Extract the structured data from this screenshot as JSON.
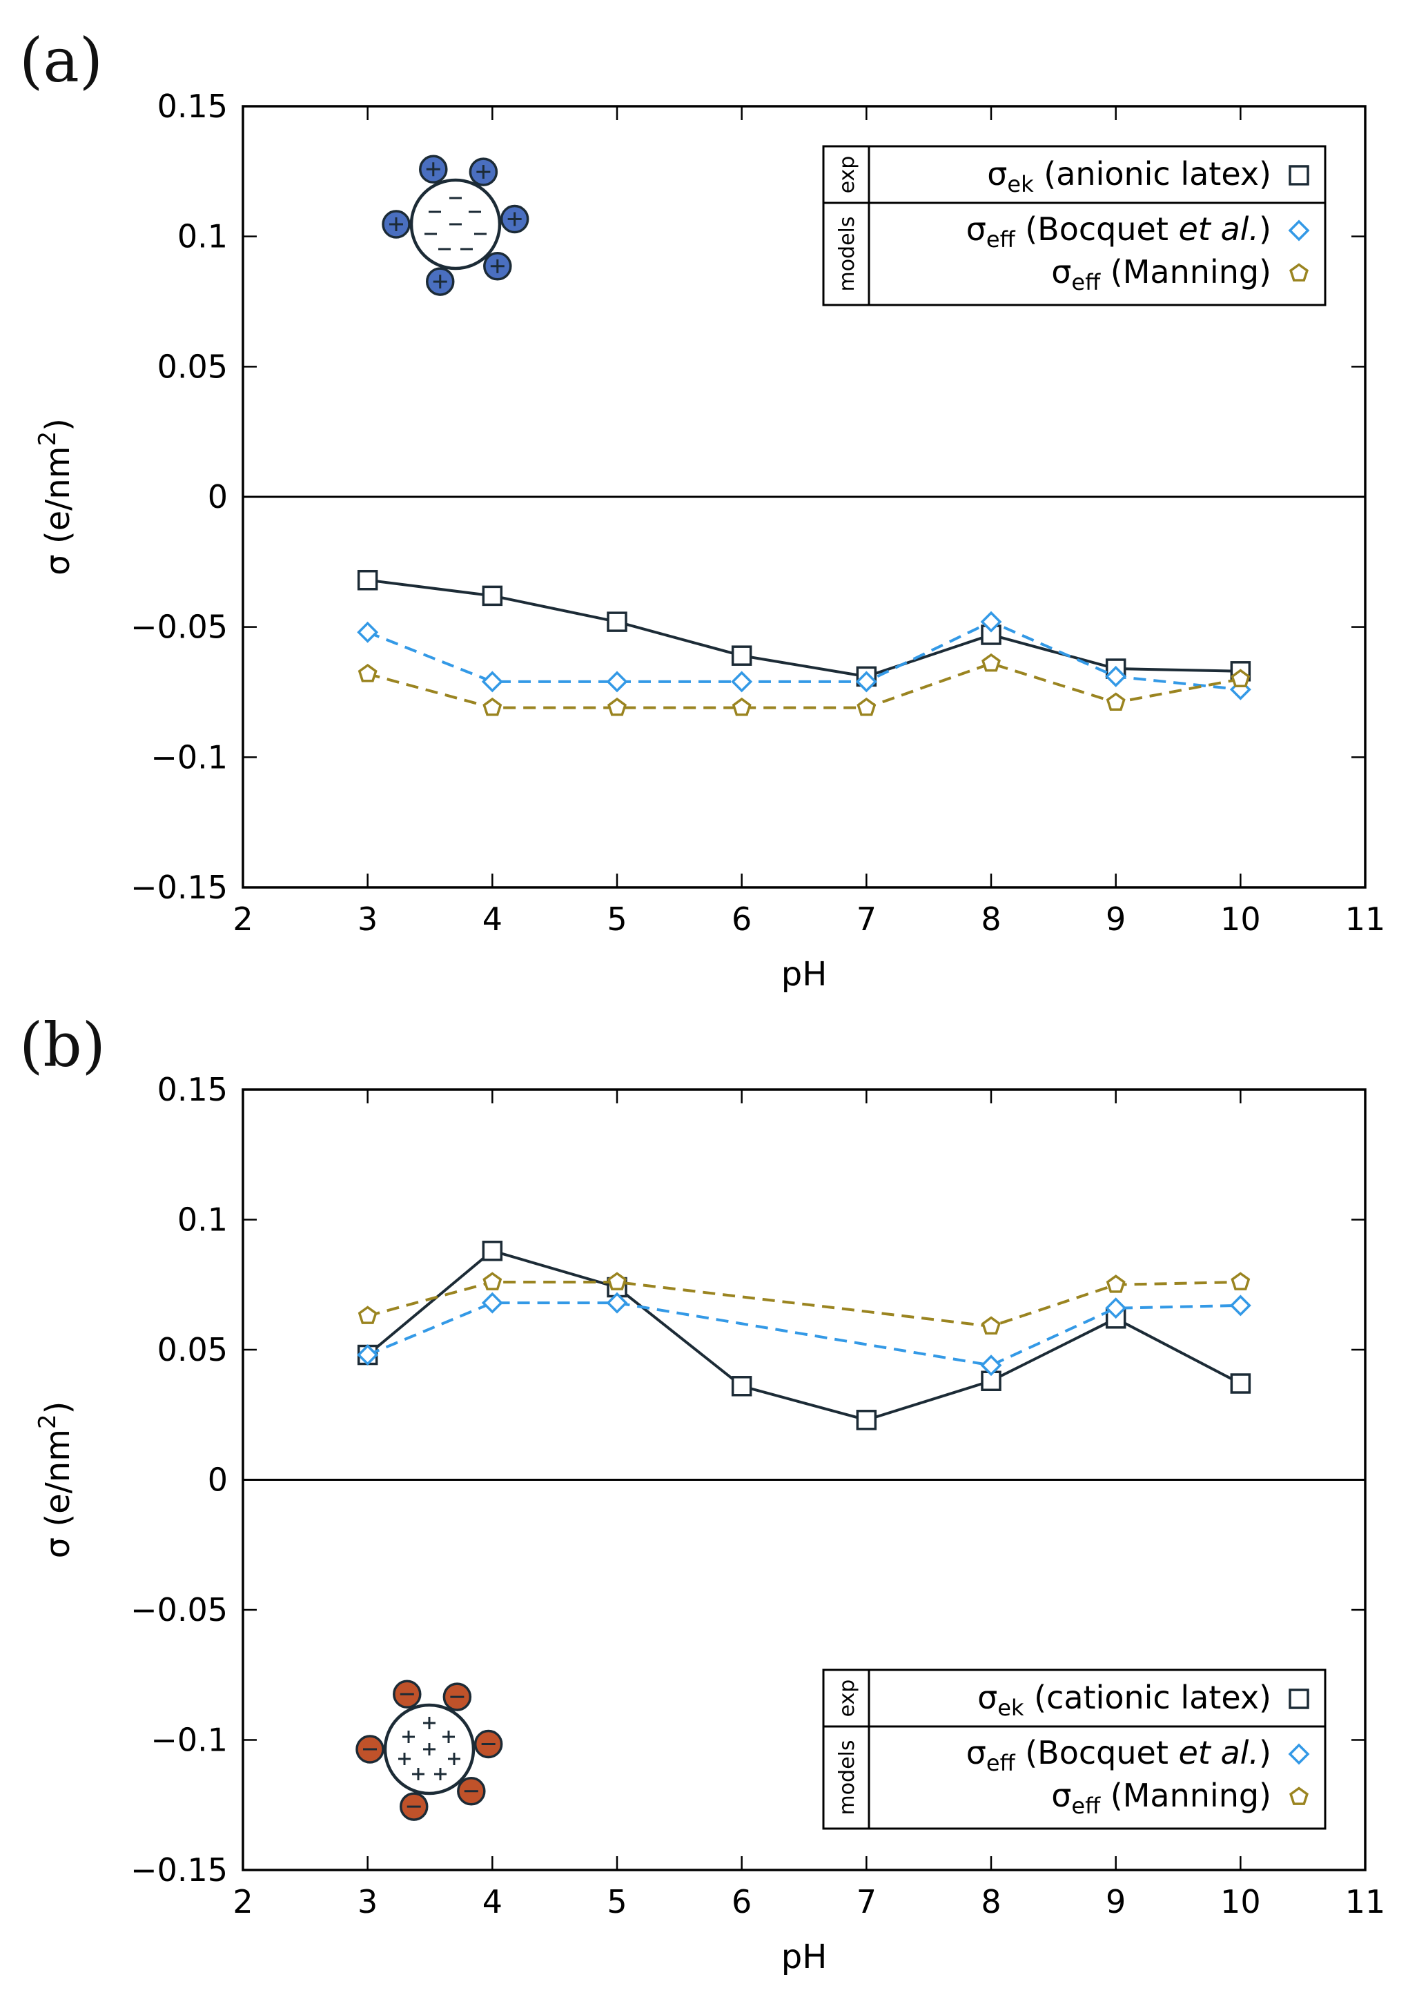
{
  "chart_data": [
    {
      "panel_label": "(a)",
      "type": "line",
      "xlabel": "pH",
      "ylabel": "σ (e/nm",
      "ylabel_sup": "2",
      "ylabel_close": ")",
      "xlim": [
        2,
        11
      ],
      "ylim": [
        -0.15,
        0.15
      ],
      "xticks": [
        2,
        3,
        4,
        5,
        6,
        7,
        8,
        9,
        10,
        11
      ],
      "yticks": [
        -0.15,
        -0.1,
        -0.05,
        0,
        0.05,
        0.1,
        0.15
      ],
      "ytick_labels": [
        "−0.15",
        "−0.1",
        "−0.05",
        "0",
        "0.05",
        "0.1",
        "0.15"
      ],
      "legend": {
        "position": "top-right",
        "group_exp": "exp",
        "group_models": "models",
        "entries": [
          {
            "sym": "σ",
            "sub": "ek",
            "text": " (anionic latex)",
            "italic": "",
            "after": ""
          },
          {
            "sym": "σ",
            "sub": "eff",
            "text": " (Bocquet ",
            "italic": "et al.",
            "after": ")"
          },
          {
            "sym": "σ",
            "sub": "eff",
            "text": " (Manning)",
            "italic": "",
            "after": ""
          }
        ]
      },
      "series": [
        {
          "name": "σek (anionic latex)",
          "marker": "square",
          "style": "solid",
          "color": "#1c2b36",
          "x": [
            3,
            4,
            5,
            6,
            7,
            8,
            9,
            10
          ],
          "y": [
            -0.032,
            -0.038,
            -0.048,
            -0.061,
            -0.069,
            -0.053,
            -0.066,
            -0.067
          ]
        },
        {
          "name": "σeff (Bocquet et al.)",
          "marker": "diamond",
          "style": "dashed",
          "color": "#3399e6",
          "x": [
            3,
            4,
            5,
            6,
            7,
            8,
            9,
            10
          ],
          "y": [
            -0.052,
            -0.071,
            -0.071,
            -0.071,
            -0.071,
            -0.048,
            -0.069,
            -0.074
          ]
        },
        {
          "name": "σeff (Manning)",
          "marker": "pentagon",
          "style": "dashed",
          "color": "#9a8420",
          "x": [
            3,
            4,
            5,
            6,
            7,
            8,
            9,
            10
          ],
          "y": [
            -0.068,
            -0.081,
            -0.081,
            -0.081,
            -0.081,
            -0.064,
            -0.079,
            -0.07
          ]
        }
      ],
      "inset": {
        "particle": "negative",
        "counterions": "positive",
        "shell_color": "#4a6fc0",
        "sign_core": "−",
        "sign_ion": "+"
      }
    },
    {
      "panel_label": "(b)",
      "type": "line",
      "xlabel": "pH",
      "ylabel": "σ (e/nm",
      "ylabel_sup": "2",
      "ylabel_close": ")",
      "xlim": [
        2,
        11
      ],
      "ylim": [
        -0.15,
        0.15
      ],
      "xticks": [
        2,
        3,
        4,
        5,
        6,
        7,
        8,
        9,
        10,
        11
      ],
      "yticks": [
        -0.15,
        -0.1,
        -0.05,
        0,
        0.05,
        0.1,
        0.15
      ],
      "ytick_labels": [
        "−0.15",
        "−0.1",
        "−0.05",
        "0",
        "0.05",
        "0.1",
        "0.15"
      ],
      "legend": {
        "position": "bottom-right",
        "group_exp": "exp",
        "group_models": "models",
        "entries": [
          {
            "sym": "σ",
            "sub": "ek",
            "text": " (cationic latex)",
            "italic": "",
            "after": ""
          },
          {
            "sym": "σ",
            "sub": "eff",
            "text": " (Bocquet ",
            "italic": "et al.",
            "after": ")"
          },
          {
            "sym": "σ",
            "sub": "eff",
            "text": " (Manning)",
            "italic": "",
            "after": ""
          }
        ]
      },
      "series": [
        {
          "name": "σek (cationic latex)",
          "marker": "square",
          "style": "solid",
          "color": "#1c2b36",
          "x": [
            3,
            4,
            5,
            6,
            7,
            8,
            9,
            10
          ],
          "y": [
            0.048,
            0.088,
            0.074,
            0.036,
            0.023,
            0.038,
            0.062,
            0.037
          ]
        },
        {
          "name": "σeff (Bocquet et al.)",
          "marker": "diamond",
          "style": "dashed",
          "color": "#3399e6",
          "x": [
            3,
            4,
            5,
            8,
            9,
            10
          ],
          "y": [
            0.048,
            0.068,
            0.068,
            0.044,
            0.066,
            0.067
          ]
        },
        {
          "name": "σeff (Manning)",
          "marker": "pentagon",
          "style": "dashed",
          "color": "#9a8420",
          "x": [
            3,
            4,
            5,
            8,
            9,
            10
          ],
          "y": [
            0.063,
            0.076,
            0.076,
            0.059,
            0.075,
            0.076
          ]
        }
      ],
      "inset": {
        "particle": "positive",
        "counterions": "negative",
        "shell_color": "#c0522a",
        "sign_core": "+",
        "sign_ion": "−"
      }
    }
  ]
}
